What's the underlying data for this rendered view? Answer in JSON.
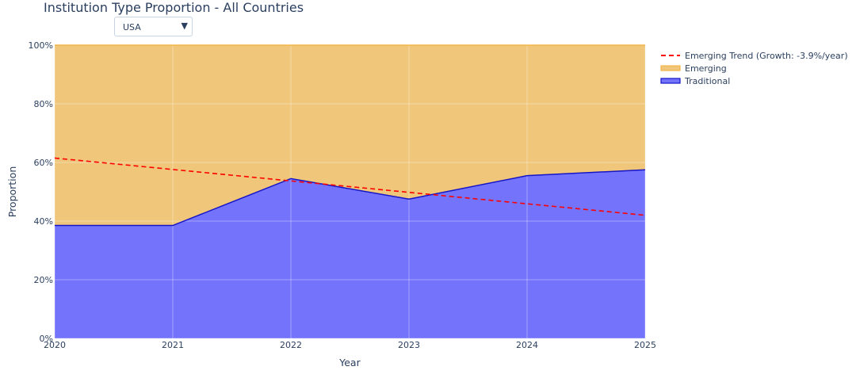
{
  "title": "Institution Type Proportion - All Countries",
  "dropdown": {
    "selected": "USA",
    "arrow_icon": "triangle-down-icon"
  },
  "chart_data": {
    "type": "area",
    "stacked": true,
    "title": "Institution Type Proportion - All Countries",
    "xlabel": "Year",
    "ylabel": "Proportion",
    "x": [
      2020,
      2021,
      2022,
      2023,
      2024,
      2025
    ],
    "xlim": [
      2020,
      2025
    ],
    "ylim": [
      0,
      1
    ],
    "x_ticks": [
      "2020",
      "2021",
      "2022",
      "2023",
      "2024",
      "2025"
    ],
    "y_ticks": [
      "0%",
      "20%",
      "40%",
      "60%",
      "80%",
      "100%"
    ],
    "y_tick_values": [
      0,
      0.2,
      0.4,
      0.6,
      0.8,
      1.0
    ],
    "grid": true,
    "legend_position": "top-right",
    "series": [
      {
        "name": "Traditional",
        "type": "area",
        "color": "#7373fc",
        "line_color": "#1515c8",
        "values": [
          0.385,
          0.385,
          0.545,
          0.475,
          0.555,
          0.575
        ]
      },
      {
        "name": "Emerging",
        "type": "area",
        "color": "#f0c67a",
        "line_color": "#f2b649",
        "values": [
          0.615,
          0.615,
          0.455,
          0.525,
          0.445,
          0.425
        ]
      },
      {
        "name": "Emerging Trend (Growth: -3.9%/year)",
        "type": "line",
        "dash": "dashed",
        "color": "#ff0000",
        "values": [
          0.615,
          0.576,
          0.537,
          0.498,
          0.459,
          0.42
        ]
      }
    ],
    "legend": [
      {
        "label": "Emerging Trend (Growth: -3.9%/year)",
        "kind": "dashed-line",
        "color": "#ff0000"
      },
      {
        "label": "Emerging",
        "kind": "area",
        "color": "#f0c67a"
      },
      {
        "label": "Traditional",
        "kind": "area",
        "color": "#7373fc"
      }
    ]
  }
}
